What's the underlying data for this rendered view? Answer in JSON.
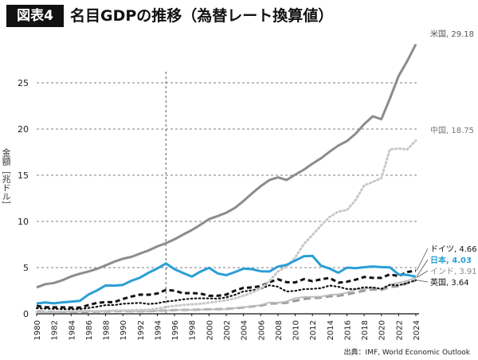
{
  "header": {
    "badge": "図表4",
    "title": "名目GDPの推移（為替レート換算値）"
  },
  "ylabel": "金額［兆ドル］",
  "source": "出典：IMF, World Economic Outlook",
  "chart_data": {
    "type": "line",
    "x": [
      1980,
      1981,
      1982,
      1983,
      1984,
      1985,
      1986,
      1987,
      1988,
      1989,
      1990,
      1991,
      1992,
      1993,
      1994,
      1995,
      1996,
      1997,
      1998,
      1999,
      2000,
      2001,
      2002,
      2003,
      2004,
      2005,
      2006,
      2007,
      2008,
      2009,
      2010,
      2011,
      2012,
      2013,
      2014,
      2015,
      2016,
      2017,
      2018,
      2019,
      2020,
      2021,
      2022,
      2023,
      2024
    ],
    "xticks": [
      "1980",
      "1982",
      "1984",
      "1986",
      "1988",
      "1990",
      "1992",
      "1994",
      "1996",
      "1998",
      "2000",
      "2002",
      "2004",
      "2006",
      "2008",
      "2010",
      "2012",
      "2014",
      "2016",
      "2018",
      "2020",
      "2022",
      "2024"
    ],
    "yticks": [
      "0",
      "5",
      "10",
      "15",
      "20",
      "25"
    ],
    "ylim": [
      0,
      30
    ],
    "xlim": [
      1980,
      2024
    ],
    "grid": "horizontal dashed",
    "marker_year": 1995,
    "series": [
      {
        "name": "米国",
        "label": "米国, 29.18",
        "color": "#8c8c8c",
        "style": "solid",
        "width": 3,
        "values": [
          2.86,
          3.21,
          3.34,
          3.64,
          4.04,
          4.34,
          4.58,
          4.86,
          5.24,
          5.64,
          5.96,
          6.16,
          6.52,
          6.86,
          7.29,
          7.64,
          8.07,
          8.58,
          9.06,
          9.63,
          10.25,
          10.58,
          10.94,
          11.46,
          12.21,
          13.04,
          13.82,
          14.47,
          14.77,
          14.48,
          15.05,
          15.6,
          16.25,
          16.84,
          17.55,
          18.21,
          18.7,
          19.48,
          20.53,
          21.38,
          21.06,
          23.32,
          25.74,
          27.36,
          29.18
        ]
      },
      {
        "name": "中国",
        "label": "中国, 18.75",
        "color": "#c8c8c8",
        "style": "dotted",
        "width": 3,
        "values": [
          0.19,
          0.2,
          0.21,
          0.23,
          0.26,
          0.31,
          0.3,
          0.27,
          0.31,
          0.35,
          0.36,
          0.38,
          0.43,
          0.44,
          0.56,
          0.73,
          0.86,
          0.96,
          1.03,
          1.09,
          1.21,
          1.34,
          1.47,
          1.66,
          1.96,
          2.29,
          2.75,
          3.55,
          4.59,
          5.1,
          6.09,
          7.55,
          8.53,
          9.57,
          10.48,
          11.06,
          11.23,
          12.31,
          13.89,
          14.28,
          14.69,
          17.82,
          17.88,
          17.79,
          18.75
        ]
      },
      {
        "name": "ドイツ",
        "label": "ドイツ, 4.66",
        "color": "#111111",
        "style": "dashed",
        "width": 3,
        "values": [
          0.85,
          0.72,
          0.7,
          0.7,
          0.66,
          0.66,
          0.94,
          1.18,
          1.27,
          1.26,
          1.6,
          1.87,
          2.08,
          2.06,
          2.2,
          2.59,
          2.5,
          2.22,
          2.24,
          2.2,
          1.95,
          1.95,
          2.08,
          2.5,
          2.81,
          2.85,
          2.99,
          3.42,
          3.73,
          3.42,
          3.4,
          3.75,
          3.53,
          3.73,
          3.89,
          3.36,
          3.47,
          3.69,
          3.98,
          3.89,
          3.89,
          4.28,
          4.08,
          4.53,
          4.66
        ]
      },
      {
        "name": "日本",
        "label": "日本, 4.03",
        "color": "#2a9fd6",
        "style": "solid",
        "width": 3,
        "values": [
          1.11,
          1.22,
          1.13,
          1.24,
          1.32,
          1.4,
          2.08,
          2.53,
          3.07,
          3.05,
          3.13,
          3.58,
          3.91,
          4.45,
          4.91,
          5.45,
          4.83,
          4.41,
          4.03,
          4.56,
          4.97,
          4.37,
          4.18,
          4.52,
          4.89,
          4.83,
          4.6,
          4.58,
          5.11,
          5.29,
          5.76,
          6.23,
          6.27,
          5.21,
          4.9,
          4.44,
          5.0,
          4.93,
          5.04,
          5.12,
          5.05,
          5.03,
          4.26,
          4.21,
          4.03
        ]
      },
      {
        "name": "インド",
        "label": "インド, 3.91",
        "color": "#bdbdbd",
        "style": "solid",
        "width": 2,
        "values": [
          0.19,
          0.2,
          0.2,
          0.22,
          0.21,
          0.23,
          0.25,
          0.28,
          0.29,
          0.3,
          0.32,
          0.27,
          0.29,
          0.28,
          0.33,
          0.36,
          0.39,
          0.42,
          0.42,
          0.46,
          0.47,
          0.49,
          0.51,
          0.61,
          0.71,
          0.82,
          0.94,
          1.22,
          1.2,
          1.34,
          1.68,
          1.82,
          1.83,
          1.86,
          2.04,
          2.1,
          2.29,
          2.65,
          2.7,
          2.84,
          2.67,
          3.15,
          3.35,
          3.57,
          3.91
        ]
      },
      {
        "name": "英国",
        "label": "英国, 3.64",
        "color": "#111111",
        "style": "dotted",
        "width": 2.2,
        "values": [
          0.6,
          0.56,
          0.54,
          0.51,
          0.49,
          0.52,
          0.63,
          0.77,
          0.94,
          0.95,
          1.09,
          1.14,
          1.18,
          1.06,
          1.14,
          1.34,
          1.41,
          1.56,
          1.65,
          1.68,
          1.66,
          1.64,
          1.78,
          2.05,
          2.42,
          2.54,
          2.71,
          3.09,
          2.93,
          2.41,
          2.48,
          2.66,
          2.7,
          2.78,
          3.06,
          2.93,
          2.69,
          2.68,
          2.87,
          2.85,
          2.7,
          3.14,
          3.09,
          3.34,
          3.64
        ]
      },
      {
        "name": "英国-long-dash",
        "label": "",
        "color": "#9a9a9a",
        "style": "longdash",
        "width": 3,
        "values": [
          0.25,
          0.24,
          0.22,
          0.21,
          0.2,
          0.2,
          0.22,
          0.24,
          0.26,
          0.28,
          0.3,
          0.28,
          0.28,
          0.29,
          0.32,
          0.36,
          0.4,
          0.42,
          0.43,
          0.46,
          0.48,
          0.5,
          0.53,
          0.6,
          0.69,
          0.8,
          0.9,
          1.1,
          1.15,
          1.2,
          1.4,
          1.6,
          1.7,
          1.75,
          1.9,
          1.95,
          2.1,
          2.3,
          2.5,
          2.65,
          2.6,
          2.9,
          3.0,
          3.3,
          3.64
        ]
      }
    ]
  }
}
